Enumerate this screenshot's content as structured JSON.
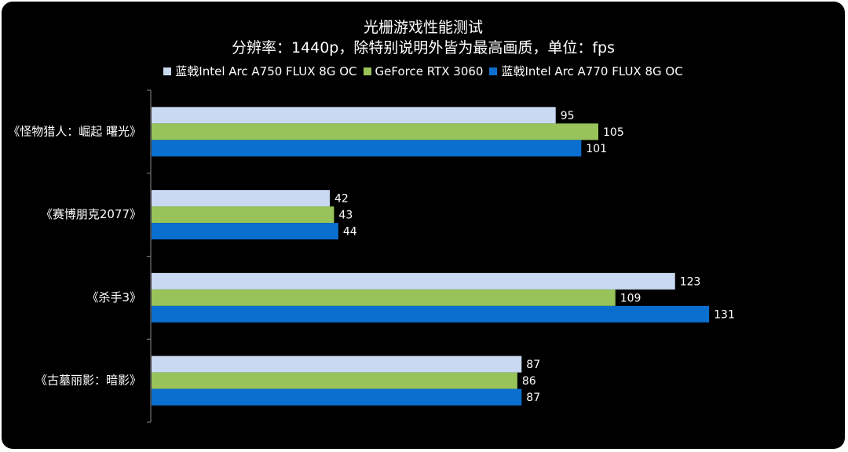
{
  "chart_data": {
    "type": "bar",
    "orientation": "horizontal",
    "title": "光栅游戏性能测试",
    "subtitle": "分辨率：1440p，除特别说明外皆为最高画质，单位：fps",
    "categories": [
      "《怪物猎人：崛起 曙光》",
      "《赛博朋克2077》",
      "《杀手3》",
      "《古墓丽影：暗影》"
    ],
    "series": [
      {
        "name": "蓝戟Intel Arc A750 FLUX 8G OC",
        "color": "#c9d9f2",
        "values": [
          95,
          42,
          123,
          87
        ]
      },
      {
        "name": "GeForce RTX 3060",
        "color": "#97c35a",
        "values": [
          105,
          43,
          109,
          86
        ]
      },
      {
        "name": "蓝戟Intel Arc A770 FLUX 8G OC",
        "color": "#0a6fcf",
        "values": [
          101,
          44,
          131,
          87
        ]
      }
    ],
    "xlim": [
      0,
      140
    ],
    "grid": false,
    "data_labels": true,
    "legend_position": "top"
  },
  "colors": {
    "background": "#000000",
    "text": "#ffffff",
    "axis": "#8a8a8a"
  }
}
